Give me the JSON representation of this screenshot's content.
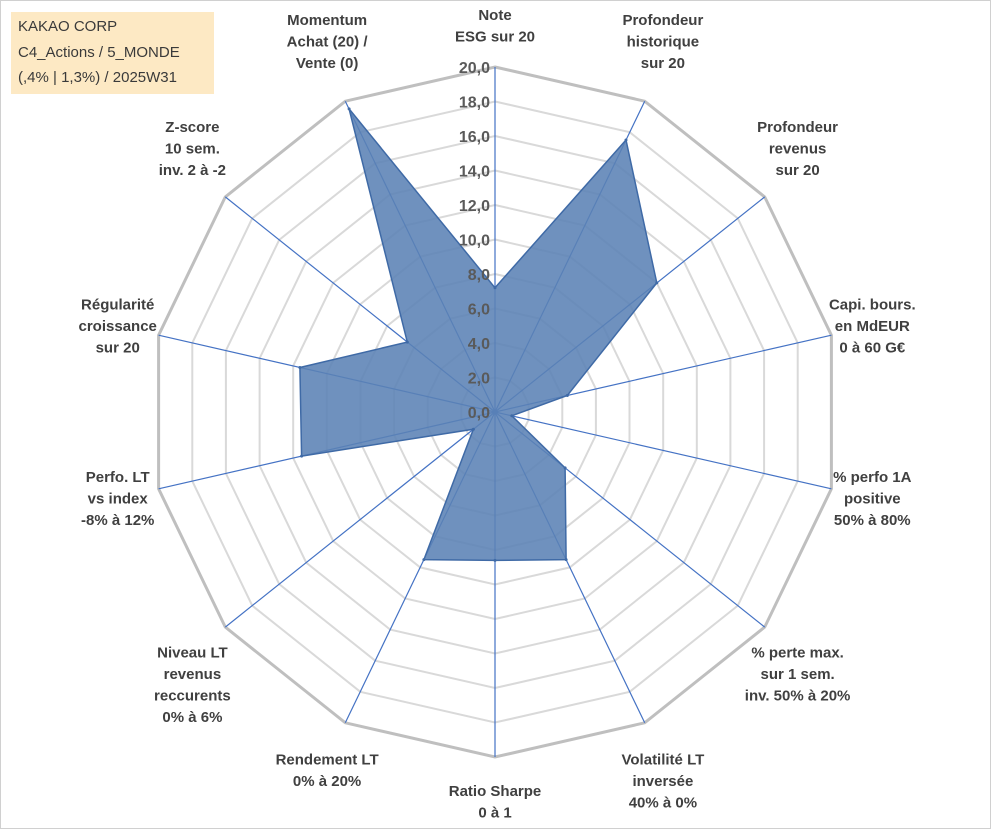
{
  "info_box": {
    "line1": "KAKAO CORP",
    "line2": "C4_Actions / 5_MONDE",
    "line3": "(,4% | 1,3%) / 2025W31"
  },
  "colors": {
    "fill": "#5b82b5",
    "stroke": "#3f6aa6",
    "grid_outer": "#bfbfbf",
    "grid_inner": "#d9d9d9",
    "spoke": "#4472c4",
    "info_bg": "#fde9c4"
  },
  "chart_data": {
    "type": "radar",
    "axis_range": [
      0,
      20
    ],
    "tick_step": 2,
    "tick_labels": [
      "0,0",
      "2,0",
      "4,0",
      "6,0",
      "8,0",
      "10,0",
      "12,0",
      "14,0",
      "16,0",
      "18,0",
      "20,0"
    ],
    "axes": [
      {
        "label": [
          "Note",
          "ESG sur 20"
        ],
        "value": 7.2
      },
      {
        "label": [
          "Profondeur",
          "historique",
          "sur 20"
        ],
        "value": 17.5
      },
      {
        "label": [
          "Profondeur",
          "revenus",
          "sur 20"
        ],
        "value": 12.0
      },
      {
        "label": [
          "Capi. bours.",
          "en MdEUR",
          "0 à 60 G€"
        ],
        "value": 4.3
      },
      {
        "label": [
          "% perfo 1A",
          "positive",
          "50% à 80%"
        ],
        "value": 1.0
      },
      {
        "label": [
          "% perte max.",
          "sur 1 sem.",
          "inv. 50% à 20%"
        ],
        "value": 5.2
      },
      {
        "label": [
          "Volatilité LT",
          "inversée",
          "40% à 0%"
        ],
        "value": 9.5
      },
      {
        "label": [
          "Ratio Sharpe",
          "0 à 1"
        ],
        "value": 8.6
      },
      {
        "label": [
          "Rendement LT",
          "0% à 20%"
        ],
        "value": 9.5
      },
      {
        "label": [
          "Niveau LT",
          "revenus",
          "reccurents",
          "0% à 6%"
        ],
        "value": 1.6
      },
      {
        "label": [
          "Perfo. LT",
          "vs index",
          "-8% à 12%"
        ],
        "value": 11.5
      },
      {
        "label": [
          "Régularité",
          "croissance",
          "sur 20"
        ],
        "value": 11.6
      },
      {
        "label": [
          "Z-score",
          "10 sem.",
          "inv. 2 à -2"
        ],
        "value": 6.5
      },
      {
        "label": [
          "Momentum",
          "Achat (20) /",
          "Vente (0)"
        ],
        "value": 19.5
      }
    ]
  }
}
